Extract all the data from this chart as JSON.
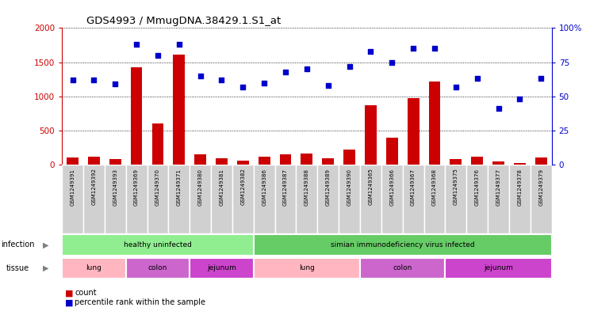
{
  "title": "GDS4993 / MmugDNA.38429.1.S1_at",
  "samples": [
    "GSM1249391",
    "GSM1249392",
    "GSM1249393",
    "GSM1249369",
    "GSM1249370",
    "GSM1249371",
    "GSM1249380",
    "GSM1249381",
    "GSM1249382",
    "GSM1249386",
    "GSM1249387",
    "GSM1249388",
    "GSM1249389",
    "GSM1249390",
    "GSM1249365",
    "GSM1249366",
    "GSM1249367",
    "GSM1249368",
    "GSM1249375",
    "GSM1249376",
    "GSM1249377",
    "GSM1249378",
    "GSM1249379"
  ],
  "counts": [
    110,
    120,
    90,
    1430,
    610,
    1610,
    150,
    100,
    60,
    120,
    155,
    165,
    100,
    220,
    870,
    400,
    970,
    1220,
    80,
    115,
    45,
    30,
    110
  ],
  "percentiles": [
    62,
    62,
    59,
    88,
    80,
    88,
    65,
    62,
    57,
    60,
    68,
    70,
    58,
    72,
    83,
    75,
    85,
    85,
    57,
    63,
    41,
    48,
    63
  ],
  "bar_color": "#CC0000",
  "dot_color": "#0000CC",
  "ylim_left": [
    0,
    2000
  ],
  "ylim_right": [
    0,
    100
  ],
  "yticks_left": [
    0,
    500,
    1000,
    1500,
    2000
  ],
  "yticks_right": [
    0,
    25,
    50,
    75,
    100
  ],
  "legend_count_label": "count",
  "legend_pct_label": "percentile rank within the sample",
  "infection_label": "infection",
  "tissue_label": "tissue",
  "sample_bg_color": "#D0D0D0",
  "chart_bg_color": "#FFFFFF",
  "inf_groups": [
    {
      "label": "healthy uninfected",
      "start": 0,
      "end": 9,
      "color": "#90EE90"
    },
    {
      "label": "simian immunodeficiency virus infected",
      "start": 9,
      "end": 23,
      "color": "#66CC66"
    }
  ],
  "tis_groups": [
    {
      "label": "lung",
      "start": 0,
      "end": 3,
      "color": "#FFB6C1"
    },
    {
      "label": "colon",
      "start": 3,
      "end": 6,
      "color": "#CC66CC"
    },
    {
      "label": "jejunum",
      "start": 6,
      "end": 9,
      "color": "#CC44CC"
    },
    {
      "label": "lung",
      "start": 9,
      "end": 14,
      "color": "#FFB6C1"
    },
    {
      "label": "colon",
      "start": 14,
      "end": 18,
      "color": "#CC66CC"
    },
    {
      "label": "jejunum",
      "start": 18,
      "end": 23,
      "color": "#CC44CC"
    }
  ]
}
